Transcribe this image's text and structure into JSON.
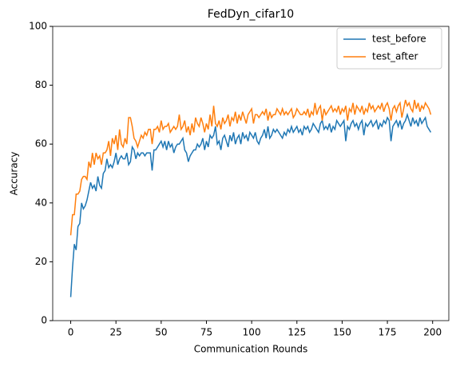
{
  "chart_data": {
    "type": "line",
    "title": "FedDyn_cifar10",
    "xlabel": "Communication Rounds",
    "ylabel": "Accuracy",
    "x": [
      0,
      1,
      2,
      3,
      4,
      5,
      6,
      7,
      8,
      9,
      10,
      11,
      12,
      13,
      14,
      15,
      16,
      17,
      18,
      19,
      20,
      21,
      22,
      23,
      24,
      25,
      26,
      27,
      28,
      29,
      30,
      31,
      32,
      33,
      34,
      35,
      36,
      37,
      38,
      39,
      40,
      41,
      42,
      43,
      44,
      45,
      46,
      47,
      48,
      49,
      50,
      51,
      52,
      53,
      54,
      55,
      56,
      57,
      58,
      59,
      60,
      61,
      62,
      63,
      64,
      65,
      66,
      67,
      68,
      69,
      70,
      71,
      72,
      73,
      74,
      75,
      76,
      77,
      78,
      79,
      80,
      81,
      82,
      83,
      84,
      85,
      86,
      87,
      88,
      89,
      90,
      91,
      92,
      93,
      94,
      95,
      96,
      97,
      98,
      99,
      100,
      101,
      102,
      103,
      104,
      105,
      106,
      107,
      108,
      109,
      110,
      111,
      112,
      113,
      114,
      115,
      116,
      117,
      118,
      119,
      120,
      121,
      122,
      123,
      124,
      125,
      126,
      127,
      128,
      129,
      130,
      131,
      132,
      133,
      134,
      135,
      136,
      137,
      138,
      139,
      140,
      141,
      142,
      143,
      144,
      145,
      146,
      147,
      148,
      149,
      150,
      151,
      152,
      153,
      154,
      155,
      156,
      157,
      158,
      159,
      160,
      161,
      162,
      163,
      164,
      165,
      166,
      167,
      168,
      169,
      170,
      171,
      172,
      173,
      174,
      175,
      176,
      177,
      178,
      179,
      180,
      181,
      182,
      183,
      184,
      185,
      186,
      187,
      188,
      189,
      190,
      191,
      192,
      193,
      194,
      195,
      196,
      197,
      198,
      199
    ],
    "series": [
      {
        "name": "test_before",
        "color": "#1f77b4",
        "values": [
          8,
          18,
          26,
          24,
          32,
          33,
          40,
          38,
          39,
          41,
          44,
          47,
          45,
          46,
          44,
          49,
          46,
          45,
          50,
          51,
          55,
          52,
          53,
          52,
          54,
          57,
          53,
          55,
          56,
          55,
          55,
          57,
          53,
          54,
          59,
          58,
          55,
          57,
          56,
          57,
          57,
          56,
          57,
          57,
          57,
          51,
          58,
          58,
          59,
          60,
          61,
          59,
          61,
          58,
          61,
          59,
          60,
          57,
          59,
          60,
          60,
          61,
          62,
          58,
          57,
          54,
          56,
          57,
          58,
          58,
          60,
          59,
          60,
          62,
          58,
          61,
          59,
          63,
          62,
          63,
          66,
          60,
          61,
          58,
          62,
          63,
          61,
          59,
          63,
          61,
          64,
          60,
          62,
          63,
          60,
          64,
          62,
          63,
          61,
          64,
          63,
          62,
          64,
          61,
          60,
          62,
          63,
          65,
          62,
          66,
          62,
          63,
          65,
          64,
          65,
          64,
          63,
          62,
          64,
          63,
          65,
          64,
          66,
          64,
          65,
          66,
          64,
          65,
          63,
          66,
          65,
          66,
          64,
          65,
          67,
          66,
          65,
          64,
          67,
          68,
          65,
          66,
          65,
          67,
          64,
          66,
          65,
          68,
          67,
          66,
          67,
          68,
          61,
          66,
          65,
          67,
          68,
          66,
          67,
          65,
          67,
          68,
          63,
          67,
          66,
          67,
          68,
          66,
          67,
          68,
          65,
          67,
          66,
          68,
          67,
          69,
          68,
          61,
          66,
          67,
          68,
          66,
          68,
          65,
          67,
          68,
          70,
          68,
          66,
          69,
          67,
          68,
          66,
          69,
          67,
          68,
          69,
          66,
          65,
          64
        ]
      },
      {
        "name": "test_after",
        "color": "#ff7f0e",
        "values": [
          29,
          36,
          36,
          43,
          43,
          44,
          48,
          49,
          49,
          48,
          54,
          52,
          57,
          53,
          57,
          55,
          56,
          53,
          57,
          57,
          58,
          61,
          56,
          62,
          60,
          63,
          58,
          65,
          60,
          59,
          62,
          60,
          69,
          69,
          66,
          62,
          61,
          59,
          61,
          63,
          62,
          64,
          63,
          65,
          65,
          60,
          65,
          65,
          66,
          64,
          68,
          65,
          66,
          66,
          67,
          64,
          65,
          66,
          65,
          66,
          70,
          65,
          66,
          68,
          64,
          66,
          63,
          67,
          64,
          69,
          67,
          66,
          69,
          67,
          64,
          67,
          65,
          70,
          66,
          73,
          67,
          66,
          68,
          65,
          69,
          67,
          68,
          70,
          66,
          69,
          68,
          71,
          67,
          70,
          68,
          71,
          69,
          67,
          70,
          71,
          72,
          67,
          70,
          70,
          69,
          70,
          71,
          70,
          72,
          68,
          71,
          69,
          70,
          70,
          72,
          71,
          70,
          72,
          70,
          71,
          70,
          71,
          72,
          69,
          70,
          72,
          71,
          70,
          70,
          71,
          70,
          72,
          69,
          71,
          70,
          74,
          70,
          72,
          73,
          68,
          72,
          70,
          71,
          72,
          73,
          71,
          72,
          71,
          73,
          70,
          72,
          71,
          73,
          68,
          72,
          71,
          74,
          70,
          73,
          72,
          71,
          73,
          70,
          72,
          71,
          74,
          72,
          73,
          71,
          72,
          73,
          72,
          74,
          71,
          73,
          74,
          72,
          68,
          72,
          73,
          71,
          73,
          74,
          69,
          72,
          75,
          73,
          74,
          72,
          71,
          75,
          72,
          74,
          71,
          73,
          72,
          74,
          73,
          72,
          70
        ]
      }
    ],
    "xlim": [
      -9.95,
      208.95
    ],
    "xticks": [
      0,
      25,
      50,
      75,
      100,
      125,
      150,
      175,
      200
    ],
    "ylim": [
      0,
      100
    ],
    "yticks": [
      0,
      20,
      40,
      60,
      80,
      100
    ],
    "legend": "upper right"
  }
}
